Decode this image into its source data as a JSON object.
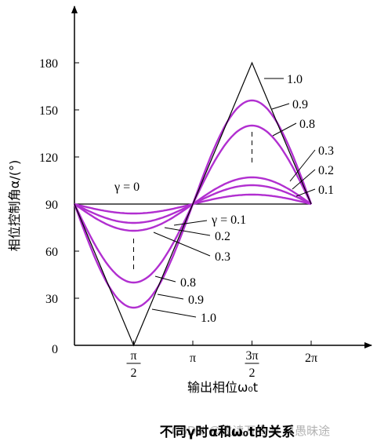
{
  "chart_data": {
    "type": "line",
    "xlabel": "输出相位ω₀t",
    "ylabel": "相位控制角α/(°)",
    "caption": "不同γ时α和ω₀t的关系",
    "watermark": "CSDN @攸读万卷书 只愚昧途",
    "x_ticks": [
      "π/2",
      "π",
      "3π/2",
      "2π"
    ],
    "x_range": [
      "0",
      "2π"
    ],
    "y_ticks": [
      0,
      30,
      60,
      90,
      120,
      150,
      180
    ],
    "ylim": [
      0,
      195
    ],
    "gamma_zero_label": "γ = 0",
    "series": [
      {
        "gamma": "0",
        "color": "#000000",
        "x": [
          "0",
          "π/2",
          "π",
          "3π/2",
          "2π"
        ],
        "values": [
          90,
          90,
          90,
          90,
          90
        ]
      },
      {
        "gamma": "0.1",
        "label": "γ = 0.1",
        "color": "#b12fd0",
        "x": [
          "0",
          "π/2",
          "π",
          "3π/2",
          "2π"
        ],
        "values": [
          90,
          84,
          90,
          96,
          90
        ]
      },
      {
        "gamma": "0.2",
        "label": "0.2",
        "color": "#b12fd0",
        "x": [
          "0",
          "π/2",
          "π",
          "3π/2",
          "2π"
        ],
        "values": [
          90,
          78,
          90,
          102,
          90
        ]
      },
      {
        "gamma": "0.3",
        "label": "0.3",
        "color": "#b12fd0",
        "x": [
          "0",
          "π/2",
          "π",
          "3π/2",
          "2π"
        ],
        "values": [
          90,
          73,
          90,
          107,
          90
        ]
      },
      {
        "gamma": "0.8",
        "label": "0.8",
        "color": "#b12fd0",
        "x": [
          "0",
          "π/2",
          "π",
          "3π/2",
          "2π"
        ],
        "values": [
          90,
          40,
          90,
          140,
          90
        ]
      },
      {
        "gamma": "0.9",
        "label": "0.9",
        "color": "#b12fd0",
        "x": [
          "0",
          "π/2",
          "π",
          "3π/2",
          "2π"
        ],
        "values": [
          90,
          24,
          90,
          156,
          90
        ]
      },
      {
        "gamma": "1.0",
        "label": "1.0",
        "color": "#000000",
        "x": [
          "0",
          "π/2",
          "π",
          "3π/2",
          "2π"
        ],
        "values": [
          90,
          0,
          90,
          180,
          90
        ]
      }
    ]
  }
}
